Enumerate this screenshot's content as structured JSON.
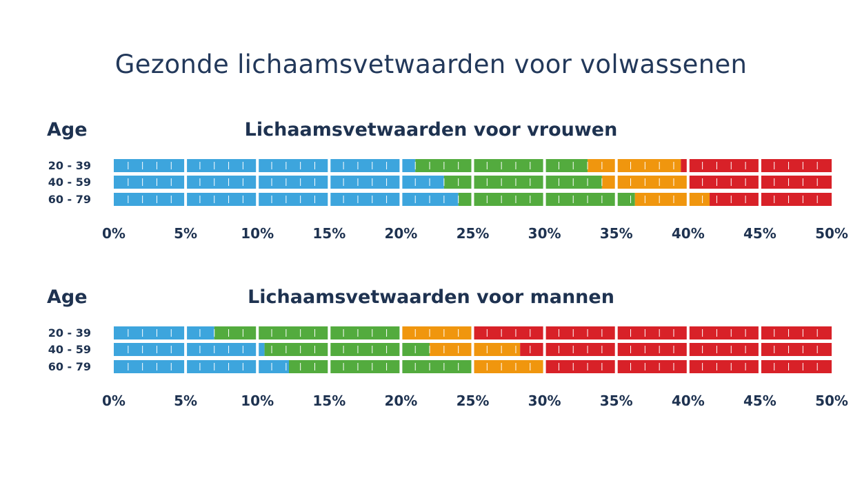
{
  "title": "Gezonde lichaamsvetwaarden voor volwassenen",
  "colors": {
    "blue": "#3da5dd",
    "green": "#53ab3e",
    "orange": "#f0960e",
    "red": "#d82128",
    "text": "#1e3250"
  },
  "chart_data": [
    {
      "type": "bar",
      "orientation": "horizontal-stacked",
      "title": "Lichaamsvetwaarden voor vrouwen",
      "row_heading": "Age",
      "categories": [
        "20 - 39",
        "40 - 59",
        "60 - 79"
      ],
      "x_ticks": [
        "0%",
        "5%",
        "10%",
        "15%",
        "20%",
        "25%",
        "30%",
        "35%",
        "40%",
        "45%",
        "50%"
      ],
      "xlim": [
        0,
        50
      ],
      "series": [
        {
          "color": "blue",
          "values": [
            21,
            23,
            24
          ]
        },
        {
          "color": "green",
          "values": [
            12,
            11,
            12.3
          ]
        },
        {
          "color": "orange",
          "values": [
            6.5,
            6,
            5.2
          ]
        },
        {
          "color": "red",
          "values": [
            10.5,
            10,
            8.5
          ]
        }
      ]
    },
    {
      "type": "bar",
      "orientation": "horizontal-stacked",
      "title": "Lichaamsvetwaarden voor mannen",
      "row_heading": "Age",
      "categories": [
        "20 - 39",
        "40 - 59",
        "60 - 79"
      ],
      "x_ticks": [
        "0%",
        "5%",
        "10%",
        "15%",
        "20%",
        "25%",
        "30%",
        "35%",
        "40%",
        "45%",
        "50%"
      ],
      "xlim": [
        0,
        50
      ],
      "series": [
        {
          "color": "blue",
          "values": [
            7,
            10.5,
            12.2
          ]
        },
        {
          "color": "green",
          "values": [
            13,
            11.5,
            12.8
          ]
        },
        {
          "color": "orange",
          "values": [
            5,
            6.3,
            5
          ]
        },
        {
          "color": "red",
          "values": [
            25,
            21.7,
            20
          ]
        }
      ]
    }
  ]
}
